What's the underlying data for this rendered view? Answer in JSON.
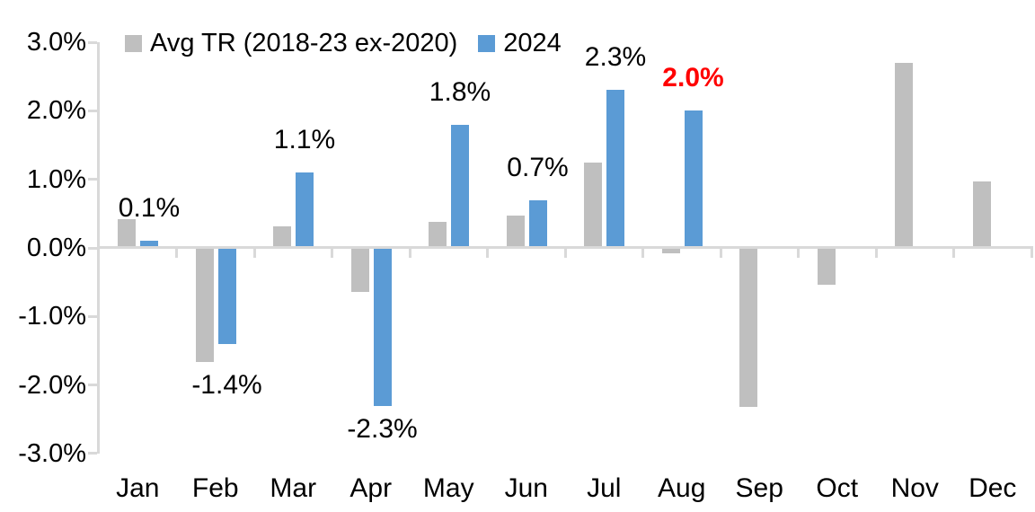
{
  "chart_data": {
    "type": "bar",
    "title": "",
    "categories": [
      "Jan",
      "Feb",
      "Mar",
      "Apr",
      "May",
      "Jun",
      "Jul",
      "Aug",
      "Sep",
      "Oct",
      "Nov",
      "Dec"
    ],
    "series": [
      {
        "name": "Avg TR (2018-23 ex-2020)",
        "color": "#bfbfbf",
        "values": [
          0.42,
          -1.66,
          0.31,
          -0.64,
          0.38,
          0.47,
          1.24,
          -0.08,
          -2.32,
          -0.54,
          2.7,
          0.97
        ]
      },
      {
        "name": "2024",
        "color": "#5b9bd5",
        "values": [
          0.1,
          -1.4,
          1.1,
          -2.3,
          1.8,
          0.7,
          2.3,
          2.0,
          null,
          null,
          null,
          null
        ],
        "data_labels": [
          "0.1%",
          "-1.4%",
          "1.1%",
          "-2.3%",
          "1.8%",
          "0.7%",
          "2.3%",
          "2.0%",
          null,
          null,
          null,
          null
        ],
        "data_label_colors": [
          "#000000",
          "#000000",
          "#000000",
          "#000000",
          "#000000",
          "#000000",
          "#000000",
          "#ff0000",
          null,
          null,
          null,
          null
        ],
        "data_label_bold": [
          false,
          false,
          false,
          false,
          false,
          false,
          false,
          true,
          false,
          false,
          false,
          false
        ]
      }
    ],
    "ylim": [
      -3,
      3
    ],
    "ytick_values": [
      3,
      2,
      1,
      0,
      -1,
      -2,
      -3
    ],
    "ytick_labels": [
      "3.0%",
      "2.0%",
      "1.0%",
      "0.0%",
      "-1.0%",
      "-2.0%",
      "-3.0%"
    ],
    "xlabel": "",
    "ylabel": "",
    "grid": false,
    "legend_position": "top",
    "axis_color": "#d9d9d9",
    "text_color": "#000000",
    "highlight": {
      "category": "Aug",
      "label": "2.0%",
      "color": "#ff0000"
    }
  }
}
